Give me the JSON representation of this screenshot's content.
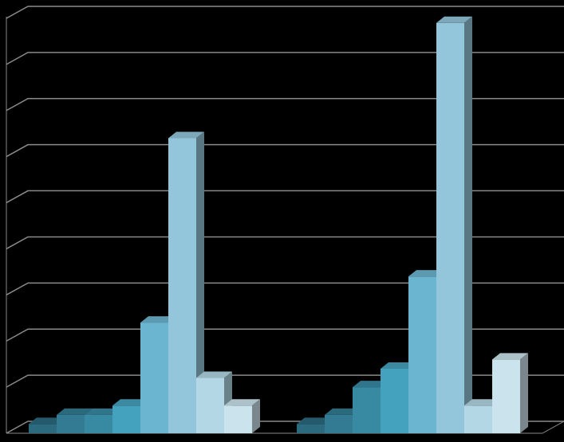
{
  "chart_data": {
    "type": "bar3d",
    "categories": [
      null,
      null
    ],
    "series": [
      {
        "color": "#2c6a80",
        "values": [
          0.2,
          0.2
        ]
      },
      {
        "color": "#327b93",
        "values": [
          0.4,
          0.4
        ]
      },
      {
        "color": "#388aa3",
        "values": [
          0.4,
          1.0
        ]
      },
      {
        "color": "#45a2bf",
        "values": [
          0.6,
          1.4
        ]
      },
      {
        "color": "#6cb5d0",
        "values": [
          2.4,
          3.4
        ]
      },
      {
        "color": "#93c6da",
        "values": [
          6.4,
          8.9
        ]
      },
      {
        "color": "#b3d7e5",
        "values": [
          1.2,
          0.6
        ]
      },
      {
        "color": "#cbe3ed",
        "values": [
          0.6,
          1.6
        ]
      }
    ],
    "ylim": [
      0,
      9
    ],
    "yticks": [
      0,
      1,
      2,
      3,
      4,
      5,
      6,
      7,
      8,
      9
    ],
    "grid": true
  }
}
